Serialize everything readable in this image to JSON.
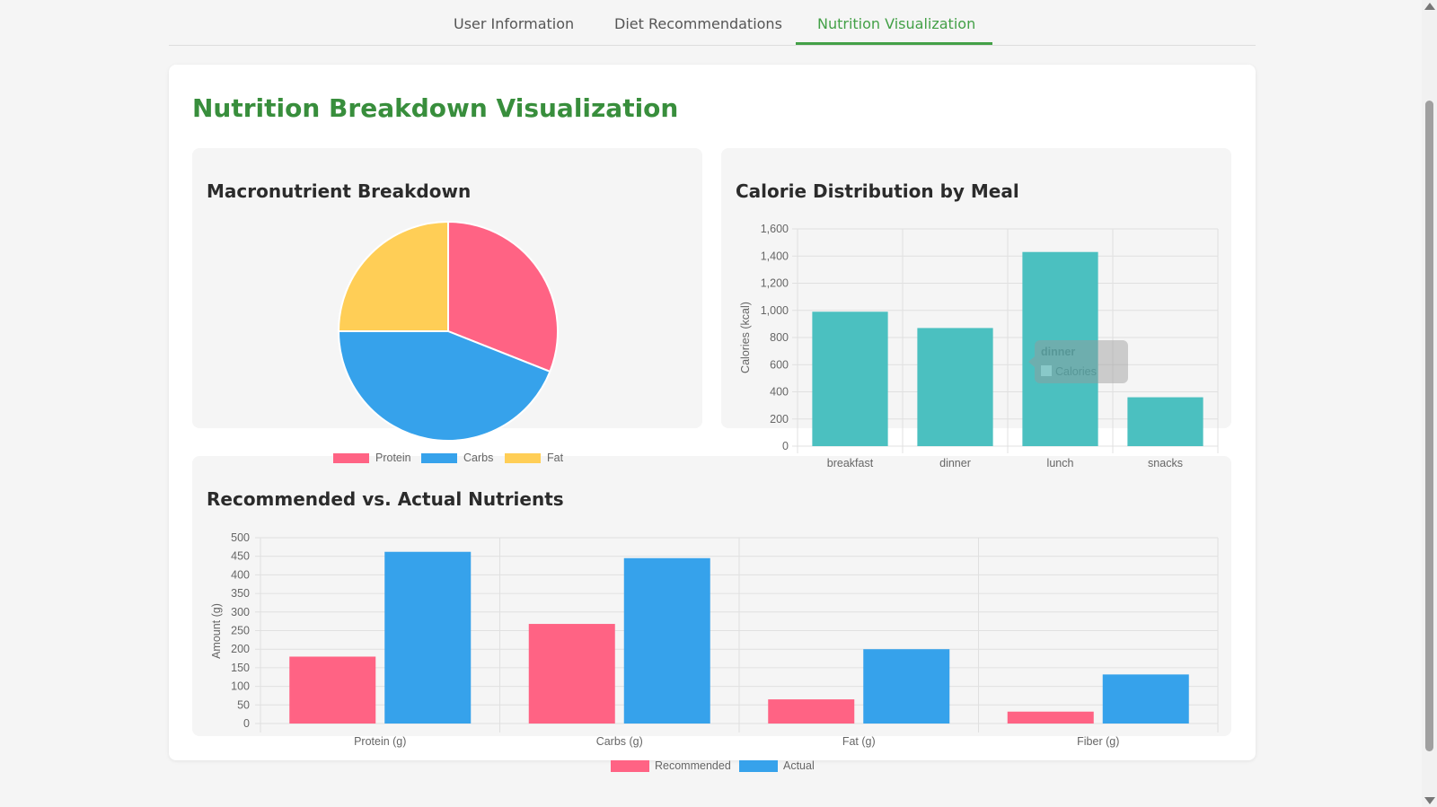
{
  "tabs": [
    {
      "label": "User Information"
    },
    {
      "label": "Diet Recommendations"
    },
    {
      "label": "Nutrition Visualization"
    }
  ],
  "page_title": "Nutrition Breakdown Visualization",
  "panels": {
    "macro": {
      "title": "Macronutrient Breakdown"
    },
    "calorie": {
      "title": "Calorie Distribution by Meal"
    },
    "nutrients": {
      "title": "Recommended vs. Actual Nutrients"
    }
  },
  "colors": {
    "protein": "#ff6384",
    "carbs": "#36a2eb",
    "fat": "#ffce56",
    "calories": "#4bc0c0",
    "accent": "#43a047",
    "title": "#388e3c"
  },
  "chart_data": [
    {
      "type": "pie",
      "title": "Macronutrient Breakdown",
      "categories": [
        "Protein",
        "Carbs",
        "Fat"
      ],
      "values": [
        31,
        44,
        25
      ],
      "legend": "bottom"
    },
    {
      "type": "bar",
      "title": "Calorie Distribution by Meal",
      "categories": [
        "breakfast",
        "dinner",
        "lunch",
        "snacks"
      ],
      "values": [
        990,
        870,
        1430,
        360
      ],
      "ylabel": "Calories (kcal)",
      "ylim": [
        0,
        1600
      ],
      "yticks": [
        "0",
        "200",
        "400",
        "600",
        "800",
        "1,000",
        "1,200",
        "1,400",
        "1,600"
      ],
      "grid": true,
      "tooltip": {
        "title": "dinner",
        "label": "Calories"
      }
    },
    {
      "type": "bar",
      "title": "Recommended vs. Actual Nutrients",
      "categories": [
        "Protein (g)",
        "Carbs (g)",
        "Fat (g)",
        "Fiber (g)"
      ],
      "series": [
        {
          "name": "Recommended",
          "values": [
            180,
            268,
            65,
            32
          ]
        },
        {
          "name": "Actual",
          "values": [
            462,
            445,
            200,
            132
          ]
        }
      ],
      "ylabel": "Amount (g)",
      "ylim": [
        0,
        500
      ],
      "yticks": [
        "0",
        "50",
        "100",
        "150",
        "200",
        "250",
        "300",
        "350",
        "400",
        "450",
        "500"
      ],
      "grid": true,
      "legend": "bottom"
    }
  ]
}
